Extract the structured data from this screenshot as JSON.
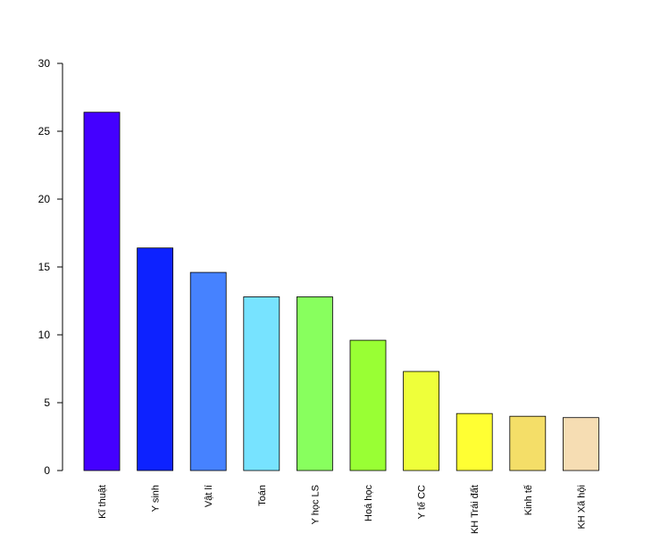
{
  "chart_data": {
    "type": "bar",
    "title": "",
    "xlabel": "",
    "ylabel": "",
    "ylim": [
      0,
      30
    ],
    "yticks": [
      0,
      5,
      10,
      15,
      20,
      25,
      30
    ],
    "grid": false,
    "legend": "none",
    "categories": [
      "Kĩ thuật",
      "Y sinh",
      "Vật lí",
      "Toán",
      "Y học LS",
      "Hoá học",
      "Y tế CC",
      "KH Trái đất",
      "Kinh tế",
      "KH Xã hội"
    ],
    "values": [
      26.4,
      16.4,
      14.6,
      12.8,
      12.8,
      9.6,
      7.3,
      4.2,
      4.0,
      3.9
    ],
    "colors": [
      "#4400FF",
      "#0D22FF",
      "#4682FF",
      "#77E3FF",
      "#88FF5E",
      "#99FF34",
      "#EEFF3A",
      "#FFFF33",
      "#F4DE68",
      "#F6DDB3"
    ]
  }
}
